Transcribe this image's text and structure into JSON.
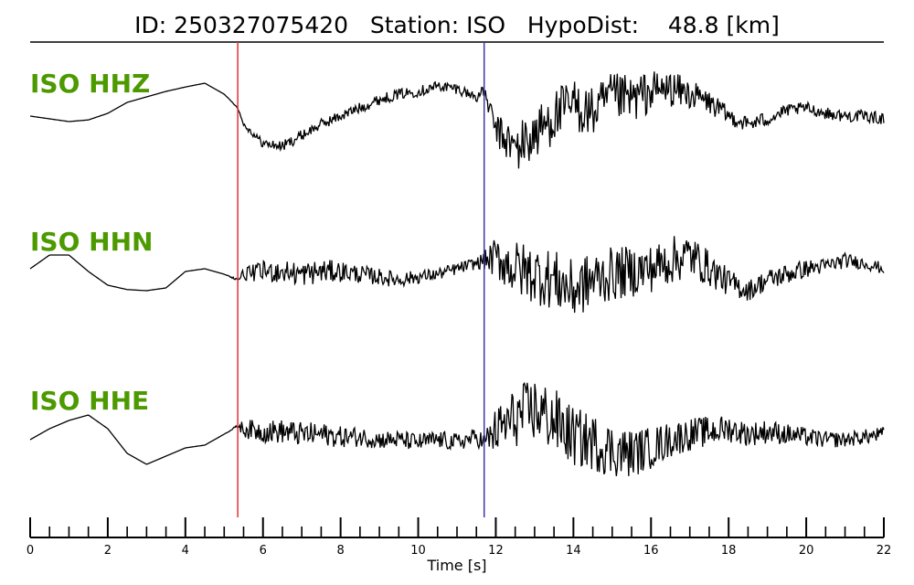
{
  "title": "ID: 250327075420   Station: ISO   HypoDist:    48.8 [km]",
  "colors": {
    "label": "#4c9a00",
    "trace": "#000000",
    "p_pick": "#e53030",
    "s_pick": "#3a3aaa"
  },
  "chart_data": {
    "type": "line",
    "title": "ID: 250327075420   Station: ISO   HypoDist:    48.8 [km]",
    "xlabel": "Time [s]",
    "ylabel": "",
    "xlim": [
      0,
      22
    ],
    "x_tick_labels": [
      "0",
      "2",
      "4",
      "6",
      "8",
      "10",
      "12",
      "14",
      "16",
      "18",
      "20",
      "22"
    ],
    "x_tick_values": [
      0,
      2,
      4,
      6,
      8,
      10,
      12,
      14,
      16,
      18,
      20,
      22
    ],
    "minor_tick_step": 0.5,
    "grid": false,
    "picks": [
      {
        "x": 5.35,
        "color": "#e53030"
      },
      {
        "x": 11.7,
        "color": "#3a3aaa"
      }
    ],
    "series": [
      {
        "name": "ISO HHZ",
        "x": [
          0,
          0.5,
          1,
          1.5,
          2,
          2.5,
          3,
          3.5,
          4,
          4.5,
          5,
          5.35,
          5.5,
          6,
          6.5,
          7,
          7.5,
          8,
          8.5,
          9,
          9.5,
          10,
          10.5,
          11,
          11.5,
          11.7,
          12,
          12.5,
          13,
          13.5,
          14,
          14.5,
          15,
          15.5,
          16,
          16.5,
          17,
          17.5,
          18,
          18.5,
          19,
          19.5,
          20,
          20.5,
          21,
          21.5,
          22
        ],
        "y": [
          0.05,
          0.0,
          -0.05,
          -0.02,
          0.1,
          0.3,
          0.4,
          0.5,
          0.58,
          0.65,
          0.45,
          0.2,
          -0.1,
          -0.45,
          -0.5,
          -0.3,
          -0.1,
          0.05,
          0.2,
          0.35,
          0.45,
          0.5,
          0.6,
          0.55,
          0.4,
          0.5,
          -0.2,
          -0.55,
          -0.3,
          0.05,
          0.25,
          0.1,
          0.4,
          0.35,
          0.5,
          0.55,
          0.45,
          0.3,
          0.05,
          -0.1,
          0.0,
          0.15,
          0.2,
          0.1,
          0.05,
          0.05,
          0.0
        ],
        "noise": [
          0,
          0,
          0,
          0,
          0,
          0,
          0,
          0,
          0,
          0,
          0,
          0.02,
          0.08,
          0.15,
          0.18,
          0.18,
          0.18,
          0.18,
          0.18,
          0.18,
          0.18,
          0.18,
          0.18,
          0.18,
          0.18,
          0.2,
          0.5,
          0.85,
          0.9,
          0.9,
          0.9,
          0.85,
          0.8,
          0.8,
          0.7,
          0.6,
          0.5,
          0.4,
          0.3,
          0.25,
          0.25,
          0.2,
          0.2,
          0.2,
          0.2,
          0.2,
          0.2
        ]
      },
      {
        "name": "ISO HHN",
        "x": [
          0,
          0.5,
          1,
          1.5,
          2,
          2.5,
          3,
          3.5,
          4,
          4.5,
          5,
          5.35,
          5.5,
          6,
          6.5,
          7,
          7.5,
          8,
          8.5,
          9,
          9.5,
          10,
          10.5,
          11,
          11.5,
          11.7,
          12,
          12.5,
          13,
          13.5,
          14,
          14.5,
          15,
          15.5,
          16,
          16.5,
          17,
          17.5,
          18,
          18.5,
          19,
          19.5,
          20,
          20.5,
          21,
          21.5,
          22
        ],
        "y": [
          0.1,
          0.35,
          0.35,
          0.05,
          -0.2,
          -0.28,
          -0.3,
          -0.25,
          0.05,
          0.1,
          0.0,
          -0.1,
          0.0,
          0.05,
          0.05,
          0.0,
          0.05,
          0.05,
          0.0,
          -0.05,
          -0.1,
          -0.05,
          0.0,
          0.1,
          0.2,
          0.25,
          0.3,
          0.1,
          0.0,
          -0.1,
          -0.3,
          -0.1,
          0.0,
          0.05,
          0.1,
          0.25,
          0.35,
          0.1,
          -0.15,
          -0.3,
          -0.1,
          0.0,
          0.1,
          0.15,
          0.25,
          0.2,
          0.1
        ],
        "noise": [
          0,
          0,
          0,
          0,
          0,
          0,
          0,
          0,
          0,
          0,
          0,
          0.05,
          0.2,
          0.35,
          0.4,
          0.4,
          0.4,
          0.35,
          0.3,
          0.28,
          0.25,
          0.22,
          0.2,
          0.2,
          0.2,
          0.3,
          0.7,
          0.95,
          1.0,
          1.0,
          1.0,
          0.95,
          0.9,
          0.85,
          0.8,
          0.8,
          0.75,
          0.6,
          0.45,
          0.35,
          0.35,
          0.35,
          0.3,
          0.25,
          0.25,
          0.2,
          0.2
        ]
      },
      {
        "name": "ISO HHE",
        "x": [
          0,
          0.5,
          1,
          1.5,
          2,
          2.5,
          3,
          3.5,
          4,
          4.5,
          5,
          5.35,
          5.5,
          6,
          6.5,
          7,
          7.5,
          8,
          8.5,
          9,
          9.5,
          10,
          10.5,
          11,
          11.5,
          11.7,
          12,
          12.5,
          13,
          13.5,
          14,
          14.5,
          15,
          15.5,
          16,
          16.5,
          17,
          17.5,
          18,
          18.5,
          19,
          19.5,
          20,
          20.5,
          21,
          21.5,
          22
        ],
        "y": [
          -0.05,
          0.15,
          0.3,
          0.4,
          0.15,
          -0.3,
          -0.5,
          -0.35,
          -0.2,
          -0.15,
          0.05,
          0.2,
          0.15,
          0.1,
          0.1,
          0.05,
          0.05,
          0.0,
          0.0,
          -0.05,
          -0.05,
          -0.1,
          -0.05,
          -0.1,
          0.0,
          -0.1,
          0.1,
          0.35,
          0.5,
          0.3,
          0.0,
          -0.1,
          -0.25,
          -0.3,
          -0.2,
          -0.05,
          0.05,
          0.1,
          0.15,
          0.05,
          0.1,
          0.05,
          0.0,
          -0.05,
          -0.05,
          0.0,
          0.05
        ],
        "noise": [
          0,
          0,
          0,
          0,
          0,
          0,
          0,
          0,
          0,
          0,
          0,
          0.05,
          0.3,
          0.38,
          0.4,
          0.4,
          0.38,
          0.35,
          0.33,
          0.3,
          0.3,
          0.3,
          0.3,
          0.3,
          0.3,
          0.35,
          0.8,
          1.0,
          1.1,
          1.1,
          1.0,
          0.95,
          0.9,
          0.8,
          0.7,
          0.6,
          0.55,
          0.5,
          0.45,
          0.4,
          0.4,
          0.35,
          0.3,
          0.28,
          0.25,
          0.25,
          0.25
        ]
      }
    ]
  }
}
